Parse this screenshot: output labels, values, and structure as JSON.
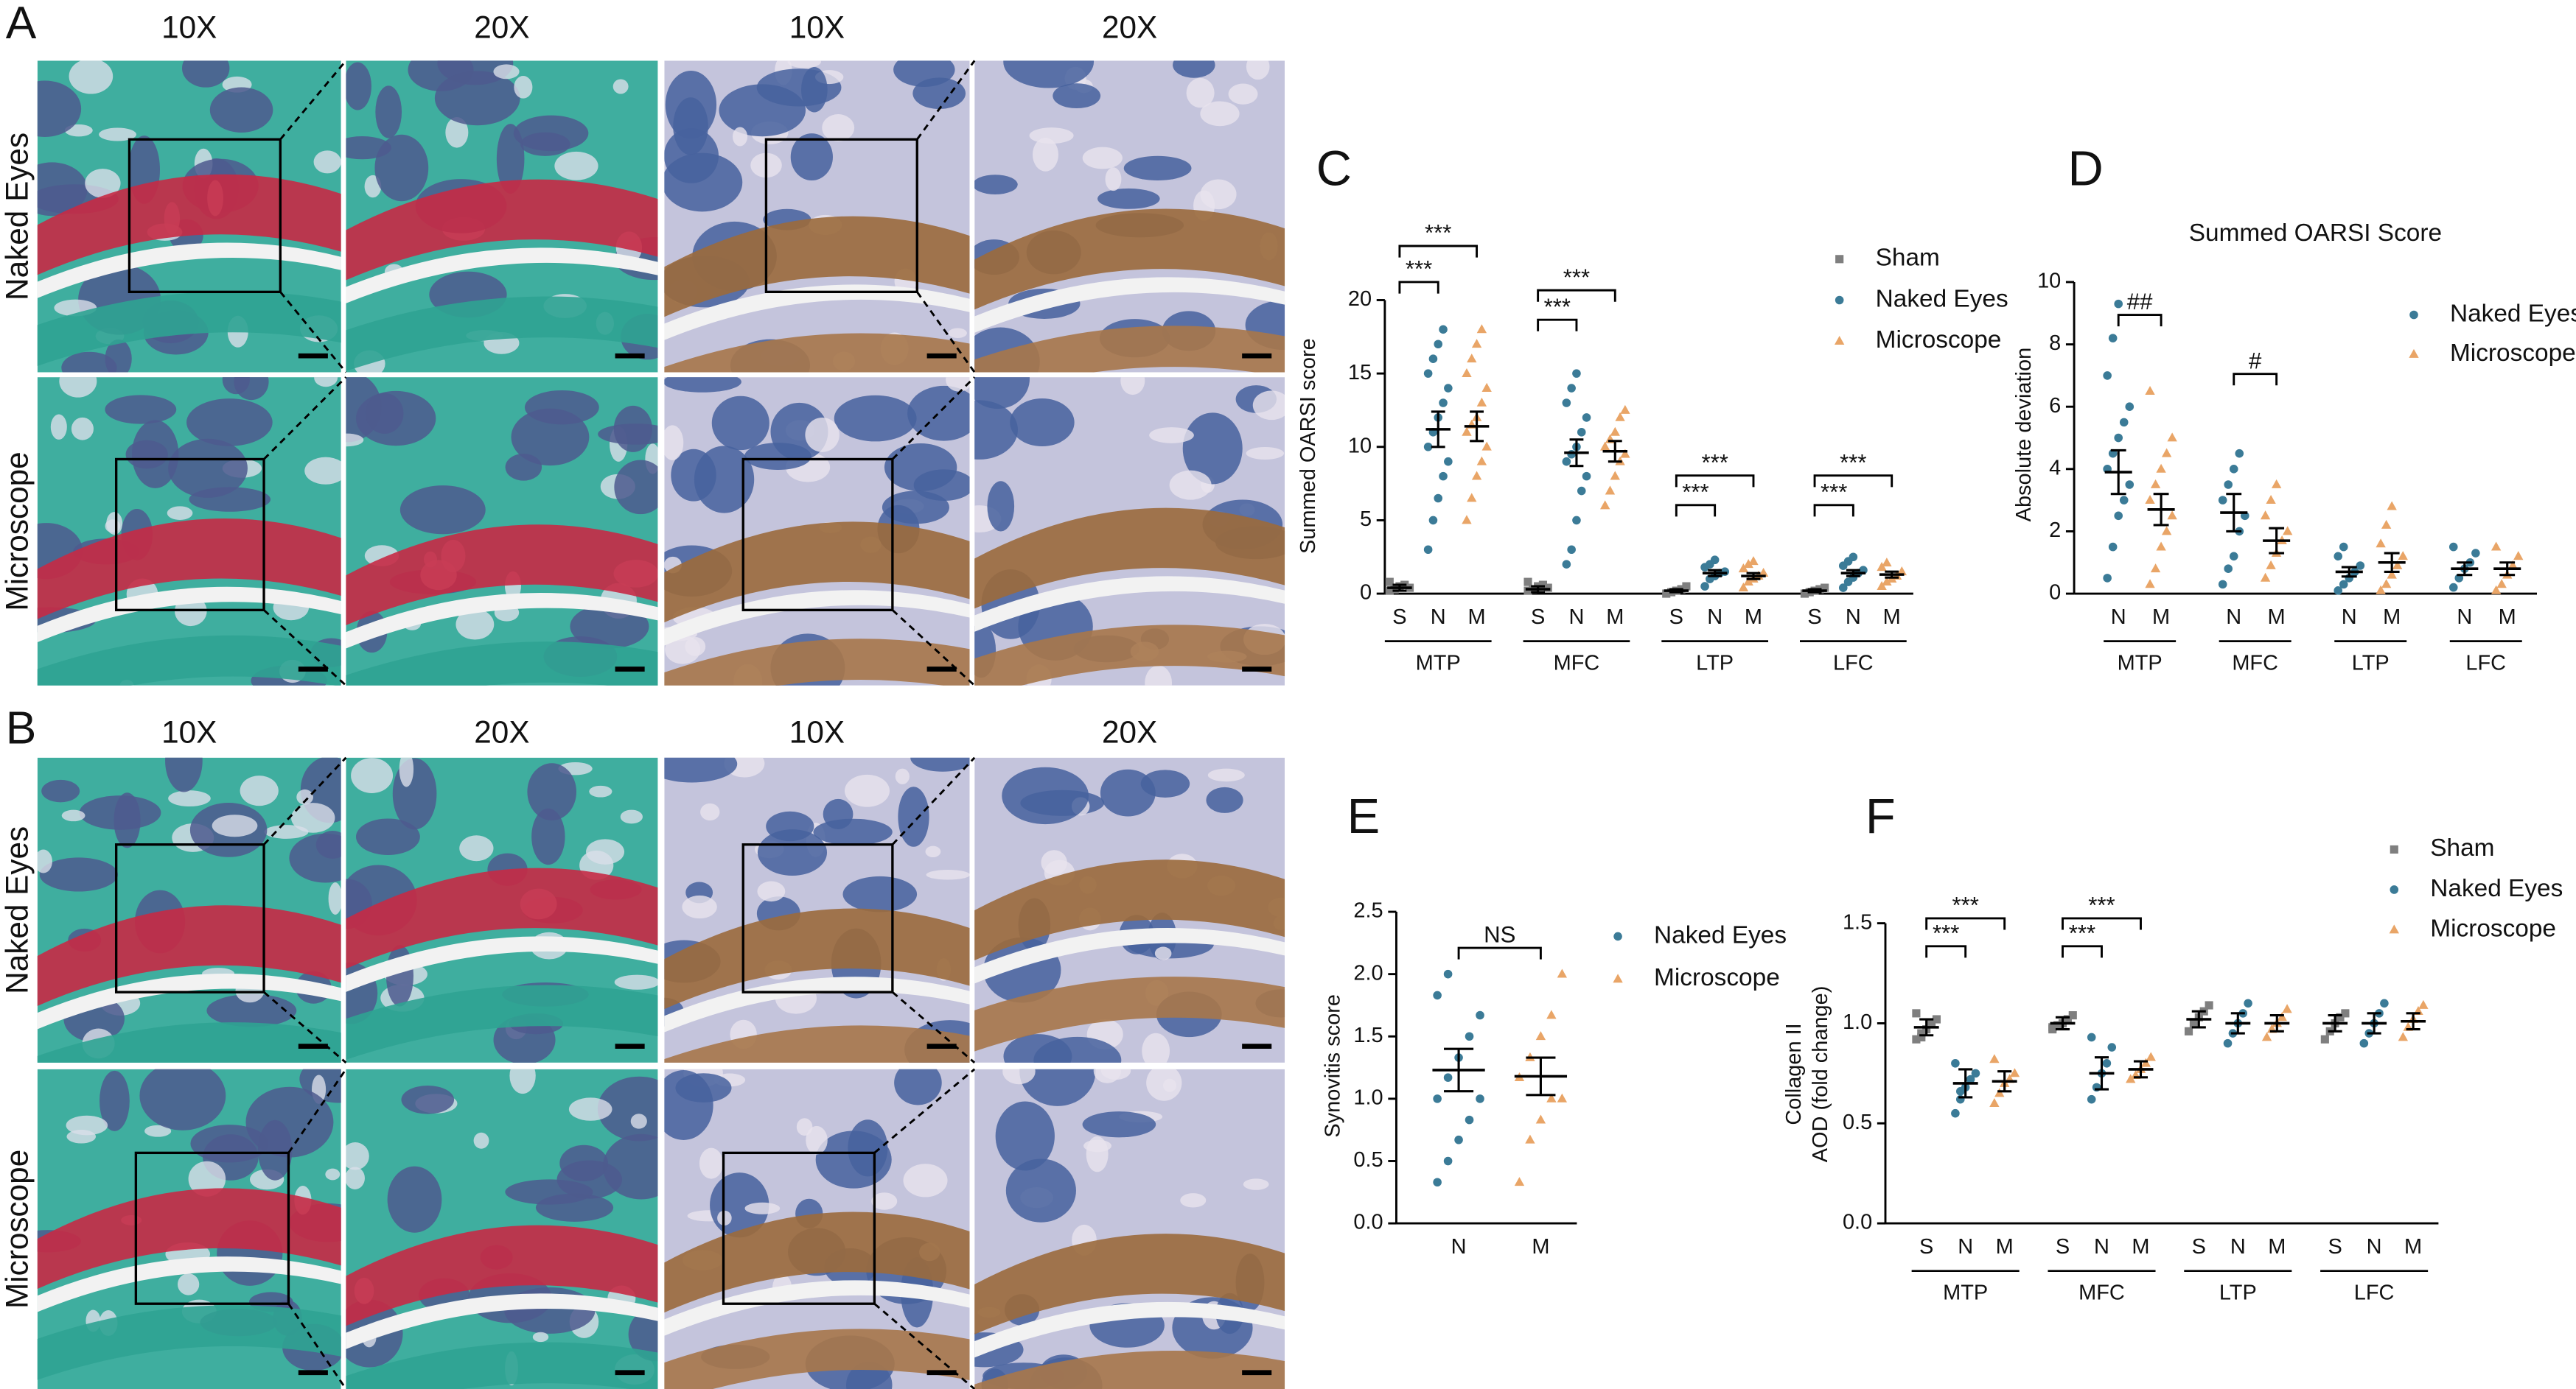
{
  "figure": {
    "panels": [
      {
        "label": "A",
        "magnifications": [
          "10X",
          "20X",
          "10X",
          "20X"
        ],
        "rows": [
          "Naked Eyes",
          "Microscope"
        ]
      },
      {
        "label": "B",
        "magnifications": [
          "10X",
          "20X",
          "10X",
          "20X"
        ],
        "rows": [
          "Naked Eyes",
          "Microscope"
        ]
      }
    ]
  },
  "chart_data": [
    {
      "type": "dot-plot",
      "panel": "C",
      "ylabel": [
        "Summed OARSI score"
      ],
      "ylim": [
        0,
        20
      ],
      "yticks": [
        0,
        5,
        10,
        15,
        20
      ],
      "categories": [
        "MTP",
        "MFC",
        "LTP",
        "LFC"
      ],
      "series": [
        {
          "name": "Sham",
          "short": "S",
          "color": "#7f7f7f",
          "marker": "square",
          "points": [
            [
              0.2,
              0.3,
              0.5,
              0.6,
              0.4,
              0.8,
              0.3
            ],
            [
              0.2,
              0.3,
              0.5,
              0.6,
              0.4,
              0.8,
              0.3
            ],
            [
              0,
              0.1,
              0.2,
              0.3,
              0.5
            ],
            [
              0,
              0.1,
              0.2,
              0.3,
              0.4
            ]
          ],
          "mean": [
            0.4,
            0.3,
            0.2,
            0.2
          ],
          "error": [
            0.2,
            0.2,
            0.1,
            0.1
          ]
        },
        {
          "name": "Naked Eyes",
          "short": "N",
          "color": "#3b7b97",
          "marker": "circle",
          "points": [
            [
              3,
              5,
              6.5,
              8,
              9,
              10,
              11,
              12,
              13,
              14,
              15,
              16,
              17,
              18
            ],
            [
              2,
              3,
              5,
              7,
              8,
              9,
              9.5,
              10,
              11,
              12,
              13,
              14,
              15
            ],
            [
              0.5,
              1,
              1.2,
              1.4,
              1.5,
              1.8,
              2,
              2.3
            ],
            [
              0.4,
              0.8,
              1.1,
              1.4,
              1.6,
              1.9,
              2.2,
              2.5
            ]
          ],
          "mean": [
            11.2,
            9.6,
            1.4,
            1.4
          ],
          "error": [
            1.2,
            0.9,
            0.2,
            0.2
          ]
        },
        {
          "name": "Microscope",
          "short": "M",
          "color": "#e9a567",
          "marker": "triangle",
          "points": [
            [
              5,
              6.5,
              8,
              9,
              10,
              11,
              11.5,
              12,
              13,
              14,
              15,
              16,
              17,
              18
            ],
            [
              6,
              7,
              8,
              9,
              9.5,
              10,
              10.5,
              11,
              12,
              12.5
            ],
            [
              0.4,
              0.8,
              1,
              1.2,
              1.4,
              1.7,
              2,
              2.2
            ],
            [
              0.5,
              0.8,
              1,
              1.2,
              1.5,
              1.8,
              2.1
            ]
          ],
          "mean": [
            11.4,
            9.7,
            1.2,
            1.3
          ],
          "error": [
            1.0,
            0.7,
            0.2,
            0.2
          ]
        }
      ],
      "annotations": [
        {
          "category": "MTP",
          "between": [
            "Sham",
            "Naked Eyes"
          ],
          "label": "***"
        },
        {
          "category": "MTP",
          "between": [
            "Sham",
            "Microscope"
          ],
          "label": "***"
        },
        {
          "category": "MFC",
          "between": [
            "Sham",
            "Naked Eyes"
          ],
          "label": "***"
        },
        {
          "category": "MFC",
          "between": [
            "Sham",
            "Microscope"
          ],
          "label": "***"
        },
        {
          "category": "LTP",
          "between": [
            "Sham",
            "Naked Eyes"
          ],
          "label": "***"
        },
        {
          "category": "LTP",
          "between": [
            "Sham",
            "Microscope"
          ],
          "label": "***"
        },
        {
          "category": "LFC",
          "between": [
            "Sham",
            "Naked Eyes"
          ],
          "label": "***"
        },
        {
          "category": "LFC",
          "between": [
            "Sham",
            "Microscope"
          ],
          "label": "***"
        }
      ]
    },
    {
      "type": "dot-plot",
      "panel": "D",
      "title": "Summed OARSI Score",
      "ylabel": [
        "Absolute deviation"
      ],
      "ylim": [
        0,
        10
      ],
      "yticks": [
        0,
        2,
        4,
        6,
        8,
        10
      ],
      "categories": [
        "MTP",
        "MFC",
        "LTP",
        "LFC"
      ],
      "series": [
        {
          "name": "Naked Eyes",
          "short": "N",
          "color": "#3b7b97",
          "marker": "circle",
          "points": [
            [
              0.5,
              1.5,
              2.5,
              3,
              3.5,
              4,
              4.5,
              5,
              5.5,
              6,
              7,
              8.2,
              9.3
            ],
            [
              0.3,
              0.8,
              1.2,
              2,
              2.5,
              3,
              3.5,
              4,
              4.5
            ],
            [
              0.1,
              0.3,
              0.5,
              0.7,
              0.9,
              1.2,
              1.5
            ],
            [
              0.2,
              0.5,
              0.8,
              1,
              1.3,
              1.5
            ]
          ],
          "mean": [
            3.9,
            2.6,
            0.7,
            0.8
          ],
          "error": [
            0.7,
            0.6,
            0.15,
            0.2
          ]
        },
        {
          "name": "Microscope",
          "short": "M",
          "color": "#e9a567",
          "marker": "triangle",
          "points": [
            [
              0.3,
              0.8,
              1.5,
              2,
              2.5,
              3,
              3.5,
              4,
              4.5,
              5,
              6.5
            ],
            [
              0.5,
              0.9,
              1.3,
              1.7,
              2,
              2.5,
              3,
              3.5
            ],
            [
              0.1,
              0.3,
              0.6,
              0.9,
              1.2,
              1.6,
              2.2,
              2.8
            ],
            [
              0.1,
              0.3,
              0.6,
              0.9,
              1.2,
              1.5
            ]
          ],
          "mean": [
            2.7,
            1.7,
            1.0,
            0.8
          ],
          "error": [
            0.5,
            0.4,
            0.3,
            0.2
          ]
        }
      ],
      "annotations": [
        {
          "category": "MTP",
          "between": [
            "Naked Eyes",
            "Microscope"
          ],
          "label": "##"
        },
        {
          "category": "MFC",
          "between": [
            "Naked Eyes",
            "Microscope"
          ],
          "label": "#"
        }
      ]
    },
    {
      "type": "dot-plot",
      "panel": "E",
      "ylabel": [
        "Synovitis score"
      ],
      "ylim": [
        0,
        2.5
      ],
      "yticks": [
        {
          "value": 0,
          "label": "0.0"
        },
        0.5,
        {
          "value": 1,
          "label": "1.0"
        },
        1.5,
        {
          "value": 2,
          "label": "2.0"
        },
        2.5
      ],
      "series": [
        {
          "name": "Naked Eyes",
          "short": "N",
          "color": "#3b7b97",
          "marker": "circle",
          "points": [
            [
              0.33,
              0.5,
              0.67,
              0.83,
              1,
              1,
              1.17,
              1.33,
              1.5,
              1.67,
              1.83,
              2
            ]
          ],
          "mean": [
            1.23
          ],
          "error": [
            0.17
          ]
        },
        {
          "name": "Microscope",
          "short": "M",
          "color": "#e9a567",
          "marker": "triangle",
          "points": [
            [
              0.33,
              0.67,
              0.83,
              1,
              1,
              1.17,
              1.33,
              1.5,
              1.67,
              2
            ]
          ],
          "mean": [
            1.18
          ],
          "error": [
            0.15
          ]
        }
      ],
      "annotations": [
        {
          "between": [
            "Naked Eyes",
            "Microscope"
          ],
          "label": "NS"
        }
      ]
    },
    {
      "type": "dot-plot",
      "panel": "F",
      "ylabel": [
        "Collagen II",
        "AOD (fold change)"
      ],
      "ylim": [
        0,
        1.5
      ],
      "yticks": [
        {
          "value": 0,
          "label": "0.0"
        },
        0.5,
        {
          "value": 1,
          "label": "1.0"
        },
        1.5
      ],
      "categories": [
        "MTP",
        "MFC",
        "LTP",
        "LFC"
      ],
      "series": [
        {
          "name": "Sham",
          "short": "S",
          "color": "#7f7f7f",
          "marker": "square",
          "points": [
            [
              0.92,
              0.95,
              0.97,
              1,
              1.02,
              1.05,
              0.93
            ],
            [
              0.97,
              0.99,
              1,
              1.02,
              1.04,
              0.98
            ],
            [
              0.96,
              1,
              1.03,
              1.06,
              1.09
            ],
            [
              0.92,
              0.96,
              1,
              1.03,
              1.05
            ]
          ],
          "mean": [
            0.98,
            1.0,
            1.02,
            1.0
          ],
          "error": [
            0.04,
            0.03,
            0.04,
            0.04
          ]
        },
        {
          "name": "Naked Eyes",
          "short": "N",
          "color": "#3b7b97",
          "marker": "circle",
          "points": [
            [
              0.55,
              0.62,
              0.68,
              0.72,
              0.75,
              0.8,
              0.66
            ],
            [
              0.62,
              0.68,
              0.75,
              0.8,
              0.88,
              0.93
            ],
            [
              0.9,
              0.95,
              1,
              1.05,
              1.1
            ],
            [
              0.9,
              0.95,
              1,
              1.05,
              1.1
            ]
          ],
          "mean": [
            0.7,
            0.75,
            1.0,
            1.0
          ],
          "error": [
            0.07,
            0.08,
            0.05,
            0.05
          ]
        },
        {
          "name": "Microscope",
          "short": "M",
          "color": "#e9a567",
          "marker": "triangle",
          "points": [
            [
              0.6,
              0.65,
              0.7,
              0.72,
              0.75,
              0.82
            ],
            [
              0.72,
              0.74,
              0.77,
              0.8,
              0.83
            ],
            [
              0.93,
              0.97,
              1,
              1.03,
              1.07
            ],
            [
              0.93,
              0.98,
              1.02,
              1.06,
              1.09
            ]
          ],
          "mean": [
            0.71,
            0.77,
            1.0,
            1.01
          ],
          "error": [
            0.05,
            0.04,
            0.04,
            0.04
          ]
        }
      ],
      "annotations": [
        {
          "category": "MTP",
          "between": [
            "Sham",
            "Naked Eyes"
          ],
          "label": "***"
        },
        {
          "category": "MTP",
          "between": [
            "Sham",
            "Microscope"
          ],
          "label": "***"
        },
        {
          "category": "MFC",
          "between": [
            "Sham",
            "Naked Eyes"
          ],
          "label": "***"
        },
        {
          "category": "MFC",
          "between": [
            "Sham",
            "Microscope"
          ],
          "label": "***"
        }
      ]
    }
  ]
}
